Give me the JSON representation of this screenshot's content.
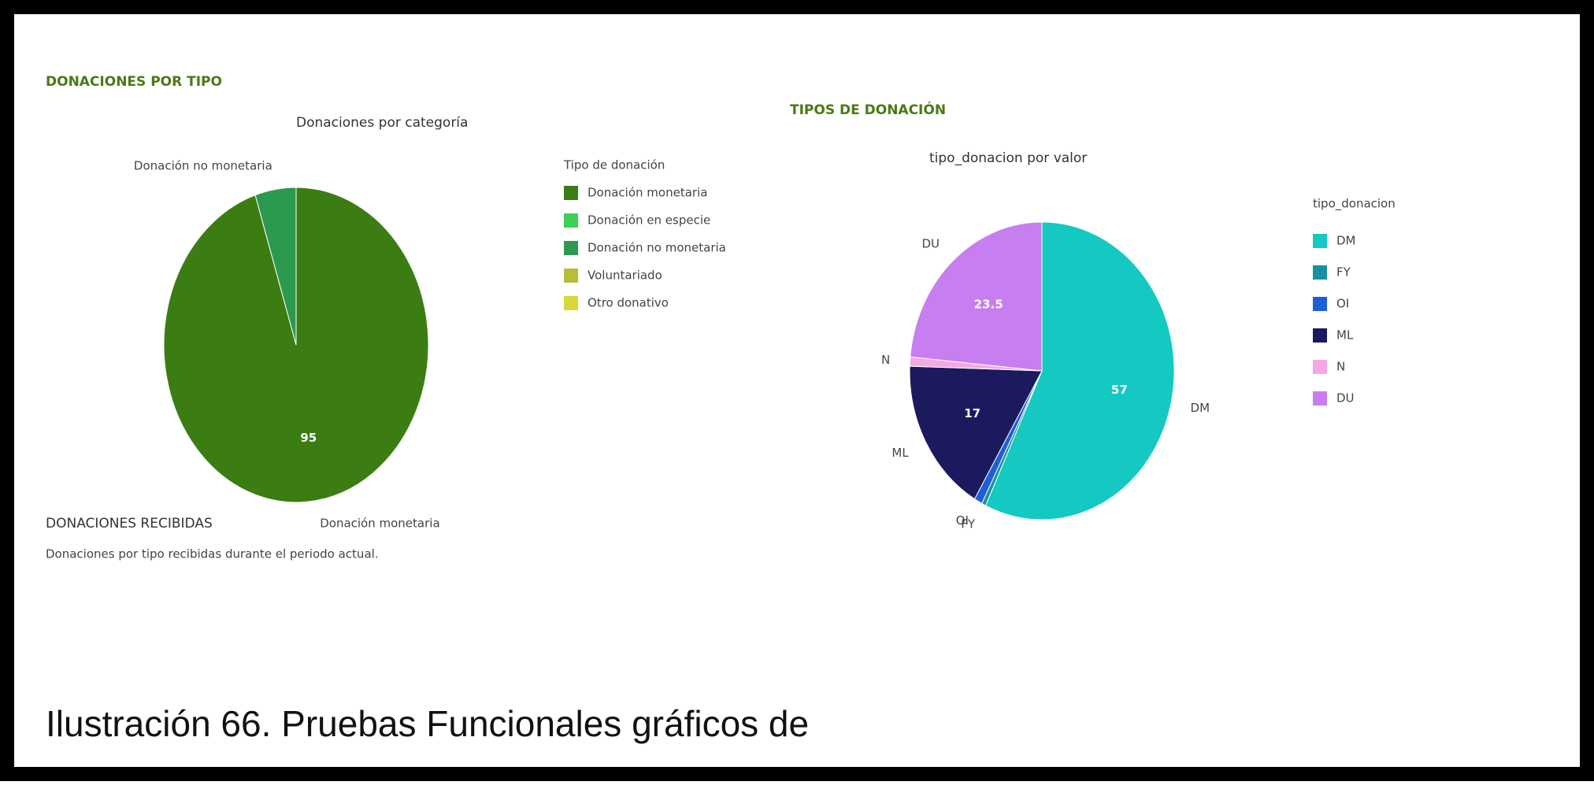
{
  "chart_data": [
    {
      "type": "pie",
      "section_title": "DONACIONES POR TIPO",
      "title": "Donaciones por categoría",
      "legend_title": "Tipo de donación",
      "categories": [
        "Donación monetaria",
        "Donación en especie",
        "Donación no monetaria",
        "Voluntariado",
        "Otro donativo"
      ],
      "values": [
        95,
        0,
        5,
        0,
        0
      ],
      "colors": [
        "#3b7d12",
        "#3ccf5a",
        "#2c9a4e",
        "#b8bd3a",
        "#d8d83a"
      ],
      "footer_title": "DONACIONES RECIBIDAS",
      "footer_text": "Donaciones por tipo recibidas durante el periodo actual."
    },
    {
      "type": "pie",
      "section_title": "TIPOS DE DONACIÓN",
      "title": "tipo_donacion por valor",
      "legend_title": "tipo_donacion",
      "categories": [
        "DM",
        "FY",
        "OI",
        "ML",
        "N",
        "DU"
      ],
      "values": [
        57,
        0.5,
        1,
        17,
        1,
        23.5
      ],
      "colors": [
        "#14c9c1",
        "#1a8fa0",
        "#1f5fd6",
        "#1c1a5e",
        "#f4a8e6",
        "#c77ef0"
      ]
    }
  ],
  "caption": "Ilustración 66. Pruebas Funcionales gráficos de"
}
